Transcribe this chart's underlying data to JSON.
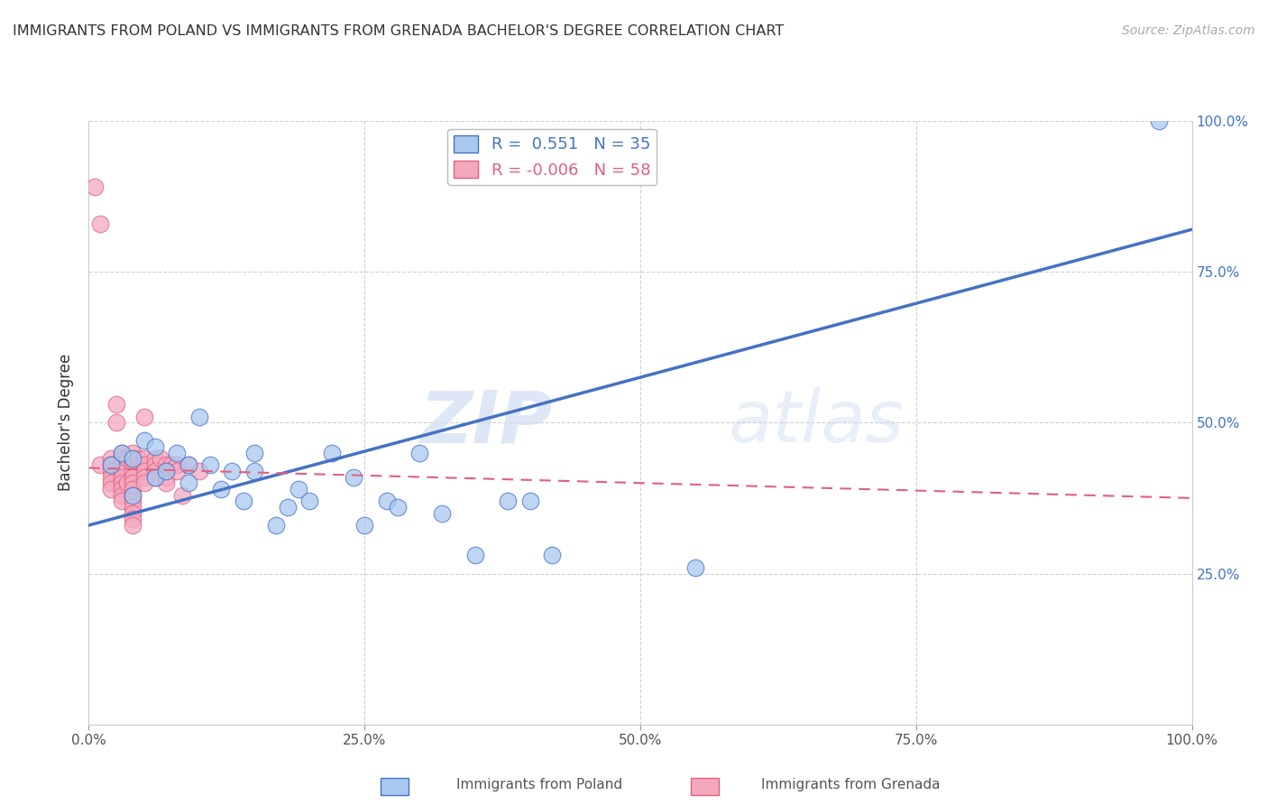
{
  "title": "IMMIGRANTS FROM POLAND VS IMMIGRANTS FROM GRENADA BACHELOR'S DEGREE CORRELATION CHART",
  "source": "Source: ZipAtlas.com",
  "ylabel": "Bachelor's Degree",
  "poland_R": 0.551,
  "poland_N": 35,
  "grenada_R": -0.006,
  "grenada_N": 58,
  "poland_color": "#A8C8F0",
  "grenada_color": "#F4A8BE",
  "poland_line_color": "#4472C4",
  "grenada_line_color": "#E06080",
  "background_color": "#FFFFFF",
  "grid_color": "#CCCCCC",
  "watermark_zip": "ZIP",
  "watermark_atlas": "atlas",
  "xlim": [
    0.0,
    1.0
  ],
  "ylim": [
    0.0,
    1.0
  ],
  "poland_x": [
    0.02,
    0.03,
    0.04,
    0.04,
    0.05,
    0.06,
    0.06,
    0.07,
    0.08,
    0.09,
    0.09,
    0.1,
    0.11,
    0.12,
    0.13,
    0.14,
    0.15,
    0.15,
    0.17,
    0.18,
    0.19,
    0.2,
    0.22,
    0.24,
    0.25,
    0.27,
    0.28,
    0.3,
    0.32,
    0.35,
    0.38,
    0.4,
    0.42,
    0.55,
    0.97
  ],
  "poland_y": [
    0.43,
    0.45,
    0.44,
    0.38,
    0.47,
    0.46,
    0.41,
    0.42,
    0.45,
    0.43,
    0.4,
    0.51,
    0.43,
    0.39,
    0.42,
    0.37,
    0.45,
    0.42,
    0.33,
    0.36,
    0.39,
    0.37,
    0.45,
    0.41,
    0.33,
    0.37,
    0.36,
    0.45,
    0.35,
    0.28,
    0.37,
    0.37,
    0.28,
    0.26,
    1.0
  ],
  "grenada_x": [
    0.005,
    0.01,
    0.01,
    0.02,
    0.02,
    0.02,
    0.02,
    0.02,
    0.02,
    0.02,
    0.025,
    0.025,
    0.03,
    0.03,
    0.03,
    0.03,
    0.03,
    0.03,
    0.03,
    0.03,
    0.03,
    0.035,
    0.035,
    0.04,
    0.04,
    0.04,
    0.04,
    0.04,
    0.04,
    0.04,
    0.04,
    0.04,
    0.04,
    0.04,
    0.04,
    0.04,
    0.045,
    0.05,
    0.05,
    0.05,
    0.05,
    0.05,
    0.05,
    0.06,
    0.06,
    0.06,
    0.06,
    0.065,
    0.07,
    0.07,
    0.07,
    0.07,
    0.075,
    0.08,
    0.08,
    0.085,
    0.09,
    0.1
  ],
  "grenada_y": [
    0.89,
    0.83,
    0.43,
    0.43,
    0.44,
    0.43,
    0.42,
    0.41,
    0.4,
    0.39,
    0.53,
    0.5,
    0.45,
    0.44,
    0.43,
    0.42,
    0.41,
    0.4,
    0.39,
    0.38,
    0.37,
    0.44,
    0.4,
    0.45,
    0.44,
    0.43,
    0.42,
    0.41,
    0.4,
    0.39,
    0.38,
    0.37,
    0.36,
    0.35,
    0.34,
    0.33,
    0.44,
    0.44,
    0.43,
    0.42,
    0.41,
    0.4,
    0.51,
    0.44,
    0.43,
    0.42,
    0.41,
    0.44,
    0.43,
    0.42,
    0.41,
    0.4,
    0.43,
    0.43,
    0.42,
    0.38,
    0.43,
    0.42
  ]
}
